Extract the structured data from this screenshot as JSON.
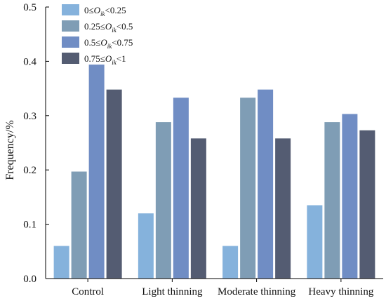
{
  "chart_data": {
    "type": "bar",
    "title": "",
    "xlabel": "",
    "ylabel": "Frequency/%",
    "ylim": [
      0,
      0.5
    ],
    "yticks": [
      "0.0",
      "0.1",
      "0.2",
      "0.3",
      "0.4",
      "0.5"
    ],
    "categories": [
      "Control",
      "Light thinning",
      "Moderate thinning",
      "Heavy thinning"
    ],
    "legend_position": "top-left",
    "grid": false,
    "series": [
      {
        "name": "0≤Oik<0.25",
        "legend": {
          "pre": "0≤",
          "var": "O",
          "sub": "ik",
          "post": "<0.25"
        },
        "color": "#85b2dc",
        "values": [
          0.06,
          0.12,
          0.06,
          0.135
        ]
      },
      {
        "name": "0.25≤Oik<0.5",
        "legend": {
          "pre": "0.25≤",
          "var": "O",
          "sub": "ik",
          "post": "<0.5"
        },
        "color": "#7f9db5",
        "values": [
          0.197,
          0.288,
          0.333,
          0.288
        ]
      },
      {
        "name": "0.5≤Oik<0.75",
        "legend": {
          "pre": "0.5≤",
          "var": "O",
          "sub": "ik",
          "post": "<0.75"
        },
        "color": "#708dc4",
        "values": [
          0.394,
          0.333,
          0.348,
          0.303
        ]
      },
      {
        "name": "0.75≤Oik<1",
        "legend": {
          "pre": "0.75≤",
          "var": "O",
          "sub": "ik",
          "post": "<1"
        },
        "color": "#545c72",
        "values": [
          0.348,
          0.258,
          0.258,
          0.273
        ]
      }
    ]
  }
}
